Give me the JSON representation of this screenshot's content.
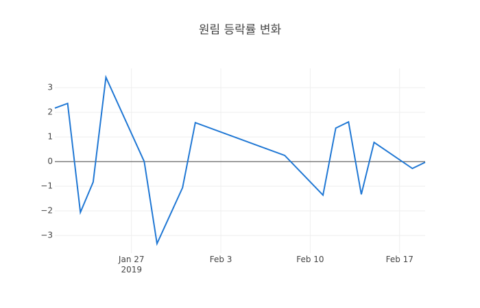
{
  "chart_data": {
    "type": "line",
    "title": "원림 등락률 변화",
    "x": [
      "2019-01-21",
      "2019-01-22",
      "2019-01-23",
      "2019-01-24",
      "2019-01-25",
      "2019-01-28",
      "2019-01-29",
      "2019-01-31",
      "2019-02-01",
      "2019-02-08",
      "2019-02-11",
      "2019-02-12",
      "2019-02-13",
      "2019-02-14",
      "2019-02-15",
      "2019-02-18",
      "2019-02-19"
    ],
    "values": [
      2.17,
      2.36,
      -2.06,
      -0.83,
      3.42,
      0.0,
      -3.33,
      -1.06,
      1.58,
      0.25,
      -1.36,
      1.36,
      1.61,
      -1.33,
      0.78,
      -0.28,
      -0.03
    ],
    "color": "#1f77d4",
    "xlim": [
      "2019-01-21",
      "2019-02-19"
    ],
    "xticks": [
      {
        "value": "2019-01-27",
        "label": "Jan 27\n2019"
      },
      {
        "value": "2019-02-03",
        "label": "Feb 3"
      },
      {
        "value": "2019-02-10",
        "label": "Feb 10"
      },
      {
        "value": "2019-02-17",
        "label": "Feb 17"
      }
    ],
    "ylim": [
      -3.72,
      3.78
    ],
    "yticks": [
      {
        "value": -3,
        "label": "−3"
      },
      {
        "value": -2,
        "label": "−2"
      },
      {
        "value": -1,
        "label": "−1"
      },
      0,
      1,
      2,
      3
    ],
    "grid": true,
    "zeroline": true
  }
}
